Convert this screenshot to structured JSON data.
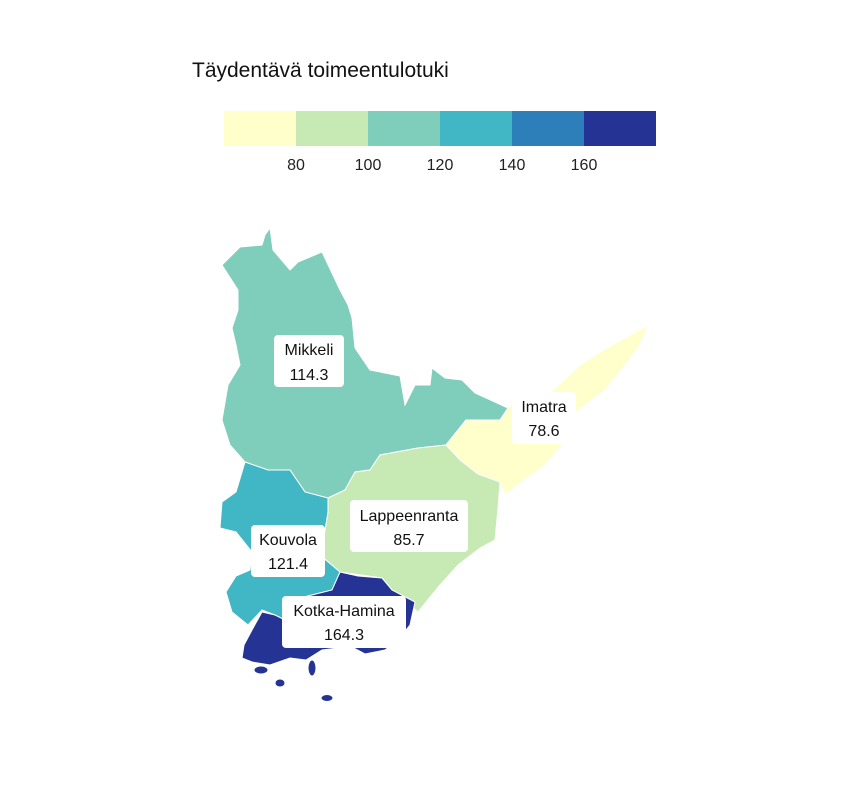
{
  "chart_data": {
    "type": "choropleth",
    "title": "Täydentävä toimeentulotuki",
    "legend": {
      "placement": "top",
      "bins": [
        {
          "max": 80,
          "color": "#ffffcc"
        },
        {
          "min": 80,
          "max": 100,
          "color": "#c7e9b4"
        },
        {
          "min": 100,
          "max": 120,
          "color": "#7fcdbb"
        },
        {
          "min": 120,
          "max": 140,
          "color": "#41b6c4"
        },
        {
          "min": 140,
          "max": 160,
          "color": "#2c7fb8"
        },
        {
          "min": 160,
          "color": "#253494"
        }
      ],
      "tick_values": [
        80,
        100,
        120,
        140,
        160
      ],
      "tick_labels": [
        "80",
        "100",
        "120",
        "140",
        "160"
      ]
    },
    "regions": [
      {
        "key": "mikkeli",
        "name": "Mikkeli",
        "value": 114.3
      },
      {
        "key": "imatra",
        "name": "Imatra",
        "value": 78.6
      },
      {
        "key": "lappeenranta",
        "name": "Lappeenranta",
        "value": 85.7
      },
      {
        "key": "kouvola",
        "name": "Kouvola",
        "value": 121.4
      },
      {
        "key": "kotka-hamina",
        "name": "Kotka-Hamina",
        "value": 164.3
      }
    ]
  }
}
